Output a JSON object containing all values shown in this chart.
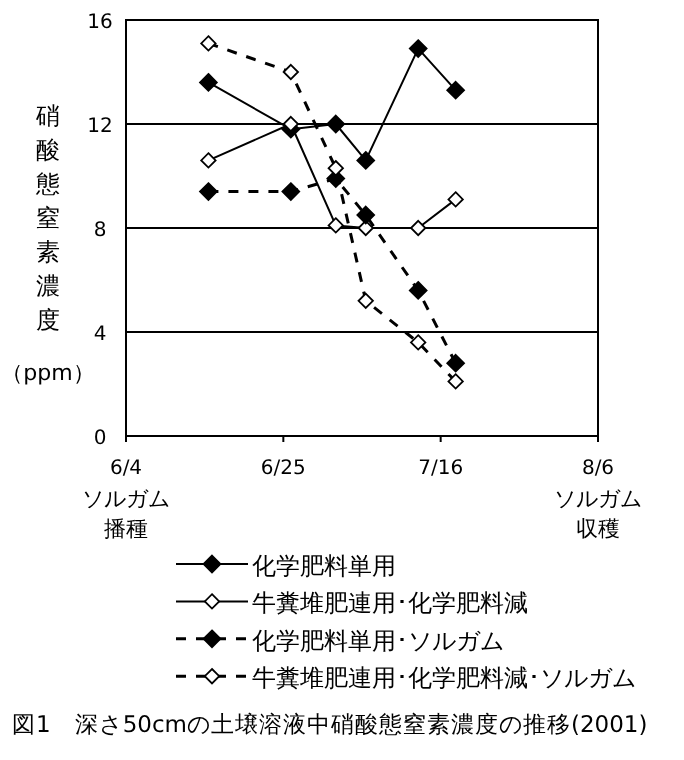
{
  "chart_data": {
    "type": "line",
    "title": "図1　深さ50cmの土壌溶液中硝酸態窒素濃度の推移(2001)",
    "ylabel": "硝酸態窒素濃度（ppm）",
    "x": [
      "--06-15",
      "--06-26",
      "--07-02",
      "--07-06",
      "--07-13",
      "--07-18"
    ],
    "xlim": [
      "--06-04",
      "--08-06"
    ],
    "xticks": [
      {
        "value": "--06-04",
        "label": "6/4"
      },
      {
        "value": "--06-25",
        "label": "6/25"
      },
      {
        "value": "--07-16",
        "label": "7/16"
      },
      {
        "value": "--08-06",
        "label": "8/6"
      }
    ],
    "annotations": [
      "ソルガム播種",
      "ソルガム収穫"
    ],
    "ylim": [
      0,
      16
    ],
    "yticks": [
      0,
      4,
      8,
      12,
      16
    ],
    "grid": "y",
    "legend": "bottom",
    "series": [
      {
        "name": "化学肥料単用",
        "color": "#000000",
        "marker": "diamond",
        "line_style": "solid",
        "values": [
          13.6,
          11.8,
          12.0,
          10.6,
          14.9,
          13.3
        ]
      },
      {
        "name": "牛糞堆肥連用･化学肥料減",
        "color": "#000000",
        "marker": "diamond open",
        "line_style": "solid",
        "values": [
          10.6,
          12.0,
          8.1,
          8.0,
          8.0,
          9.1
        ]
      },
      {
        "name": "化学肥料単用･ソルガム",
        "color": "#000000",
        "marker": "diamond",
        "line_style": "dashed",
        "values": [
          9.4,
          9.4,
          9.9,
          8.5,
          5.6,
          2.8
        ]
      },
      {
        "name": "牛糞堆肥連用･化学肥料減･ソルガム",
        "color": "#000000",
        "marker": "diamond open",
        "line_style": "dashed",
        "values": [
          15.1,
          14.0,
          10.3,
          5.2,
          3.6,
          2.1
        ]
      }
    ]
  }
}
